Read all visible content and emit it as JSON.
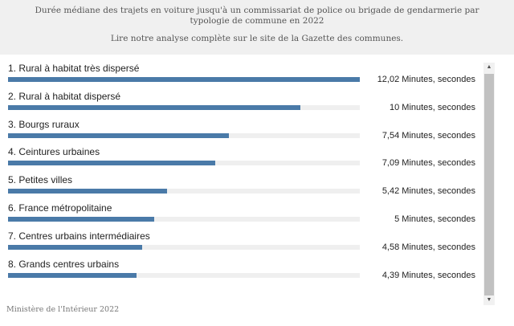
{
  "header": {
    "subtitle": "Durée médiane des trajets en voiture jusqu'à un commissariat de police ou brigade de gendarmerie par typologie de commune en 2022",
    "note": "Lire notre analyse complète sur le site de la Gazette des communes."
  },
  "chart_data": {
    "type": "bar",
    "orientation": "horizontal",
    "categories": [
      "1. Rural à habitat très dispersé",
      "2. Rural à habitat dispersé",
      "3. Bourgs ruraux",
      "4. Ceintures urbaines",
      "5. Petites villes",
      "6. France métropolitaine",
      "7. Centres urbains intermédiaires",
      "8. Grands centres urbains"
    ],
    "values": [
      12.02,
      10,
      7.54,
      7.09,
      5.42,
      5,
      4.58,
      4.39
    ],
    "value_labels": [
      "12,02 Minutes, secondes",
      "10 Minutes, secondes",
      "7,54 Minutes, secondes",
      "7,09 Minutes, secondes",
      "5,42 Minutes, secondes",
      "5 Minutes, secondes",
      "4,58 Minutes, secondes",
      "4,39 Minutes, secondes"
    ],
    "xlim": [
      0,
      12.02
    ],
    "bar_color": "#4a7aa8",
    "track_color": "#efefef",
    "grid": false
  },
  "source": "Ministère de l'Intérieur 2022",
  "scrollbar": {
    "up_icon": "▲",
    "down_icon": "▼"
  }
}
